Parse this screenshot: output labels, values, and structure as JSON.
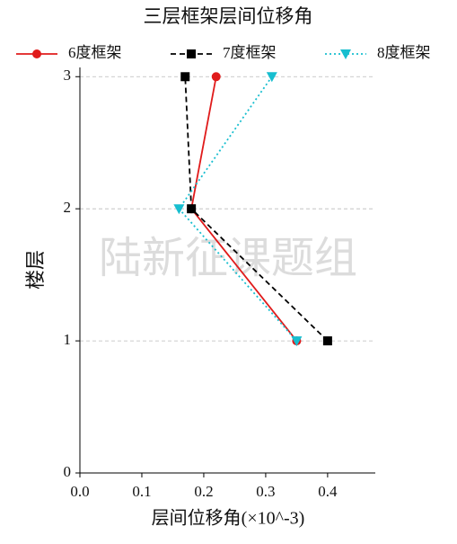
{
  "chart_data": {
    "type": "line",
    "title": "三层框架层间位移角",
    "x_label": "层间位移角(×10^-3)",
    "y_label": "楼层",
    "watermark": "陆新征课题组",
    "floors": [
      1,
      2,
      3
    ],
    "series": [
      {
        "name": "6度框架",
        "color": "#e01b1b",
        "marker": "circle",
        "dash": "none",
        "values": [
          0.35,
          0.18,
          0.22
        ]
      },
      {
        "name": "7度框架",
        "color": "#000000",
        "marker": "square",
        "dash": "6,4",
        "values": [
          0.4,
          0.18,
          0.17
        ]
      },
      {
        "name": "8度框架",
        "color": "#17becf",
        "marker": "triangle",
        "dash": "2,3",
        "values": [
          0.35,
          0.16,
          0.31
        ]
      }
    ],
    "xlim": [
      0,
      0.477
    ],
    "xticks": [
      {
        "value": 0,
        "label": "0.0"
      },
      0.1,
      0.2,
      0.3,
      0.4
    ],
    "ylim": [
      0,
      3.07
    ],
    "yticks": [
      0,
      1,
      2,
      3
    ],
    "grid": "y",
    "legend": "top"
  }
}
